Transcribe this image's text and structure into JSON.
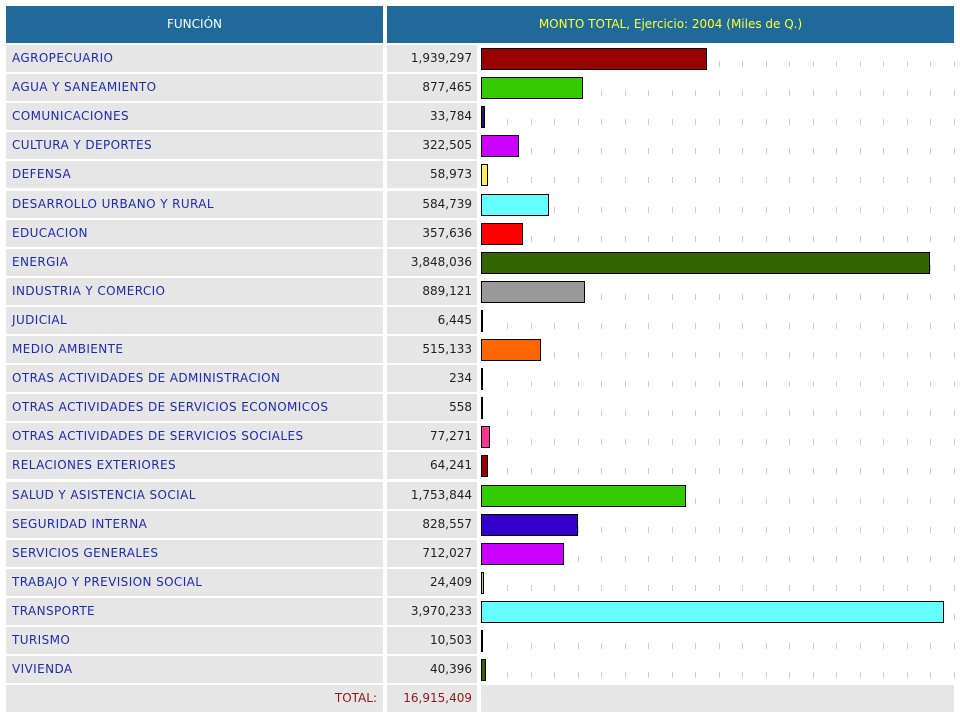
{
  "header": {
    "left_label": "FUNCIÓN",
    "right_label": "MONTO TOTAL, Ejercicio: 2004 (Miles de Q.)"
  },
  "chart_data": {
    "type": "bar",
    "orientation": "horizontal",
    "title": "MONTO TOTAL, Ejercicio: 2004 (Miles de Q.)",
    "categories": [
      "AGROPECUARIO",
      "AGUA Y SANEAMIENTO",
      "COMUNICACIONES",
      "CULTURA Y DEPORTES",
      "DEFENSA",
      "DESARROLLO URBANO Y RURAL",
      "EDUCACION",
      "ENERGIA",
      "INDUSTRIA Y COMERCIO",
      "JUDICIAL",
      "MEDIO AMBIENTE",
      "OTRAS ACTIVIDADES DE ADMINISTRACION",
      "OTRAS ACTIVIDADES DE SERVICIOS ECONOMICOS",
      "OTRAS ACTIVIDADES DE SERVICIOS SOCIALES",
      "RELACIONES EXTERIORES",
      "SALUD Y ASISTENCIA SOCIAL",
      "SEGURIDAD INTERNA",
      "SERVICIOS GENERALES",
      "TRABAJO Y PREVISION SOCIAL",
      "TRANSPORTE",
      "TURISMO",
      "VIVIENDA"
    ],
    "values": [
      1939297,
      877465,
      33784,
      322505,
      58973,
      584739,
      357636,
      3848036,
      889121,
      6445,
      515133,
      234,
      558,
      77271,
      64241,
      1753844,
      828557,
      712027,
      24409,
      3970233,
      10503,
      40396
    ],
    "value_labels": [
      "1,939,297",
      "877,465",
      "33,784",
      "322,505",
      "58,973",
      "584,739",
      "357,636",
      "3,848,036",
      "889,121",
      "6,445",
      "515,133",
      "234",
      "558",
      "77,271",
      "64,241",
      "1,753,844",
      "828,557",
      "712,027",
      "24,409",
      "3,970,233",
      "10,503",
      "40,396"
    ],
    "colors": [
      "#990000",
      "#33cc00",
      "#1a1a66",
      "#cc00ff",
      "#ffee55",
      "#66ffff",
      "#ff0000",
      "#336600",
      "#999999",
      "#ccaa33",
      "#ff6600",
      "#661133",
      "#333399",
      "#ff3399",
      "#990000",
      "#33cc00",
      "#3300cc",
      "#cc00ff",
      "#cccc88",
      "#66ffff",
      "#990000",
      "#336600"
    ],
    "total_label": "TOTAL:",
    "total_value": "16,915,409",
    "xlim": [
      0,
      3970233
    ]
  }
}
